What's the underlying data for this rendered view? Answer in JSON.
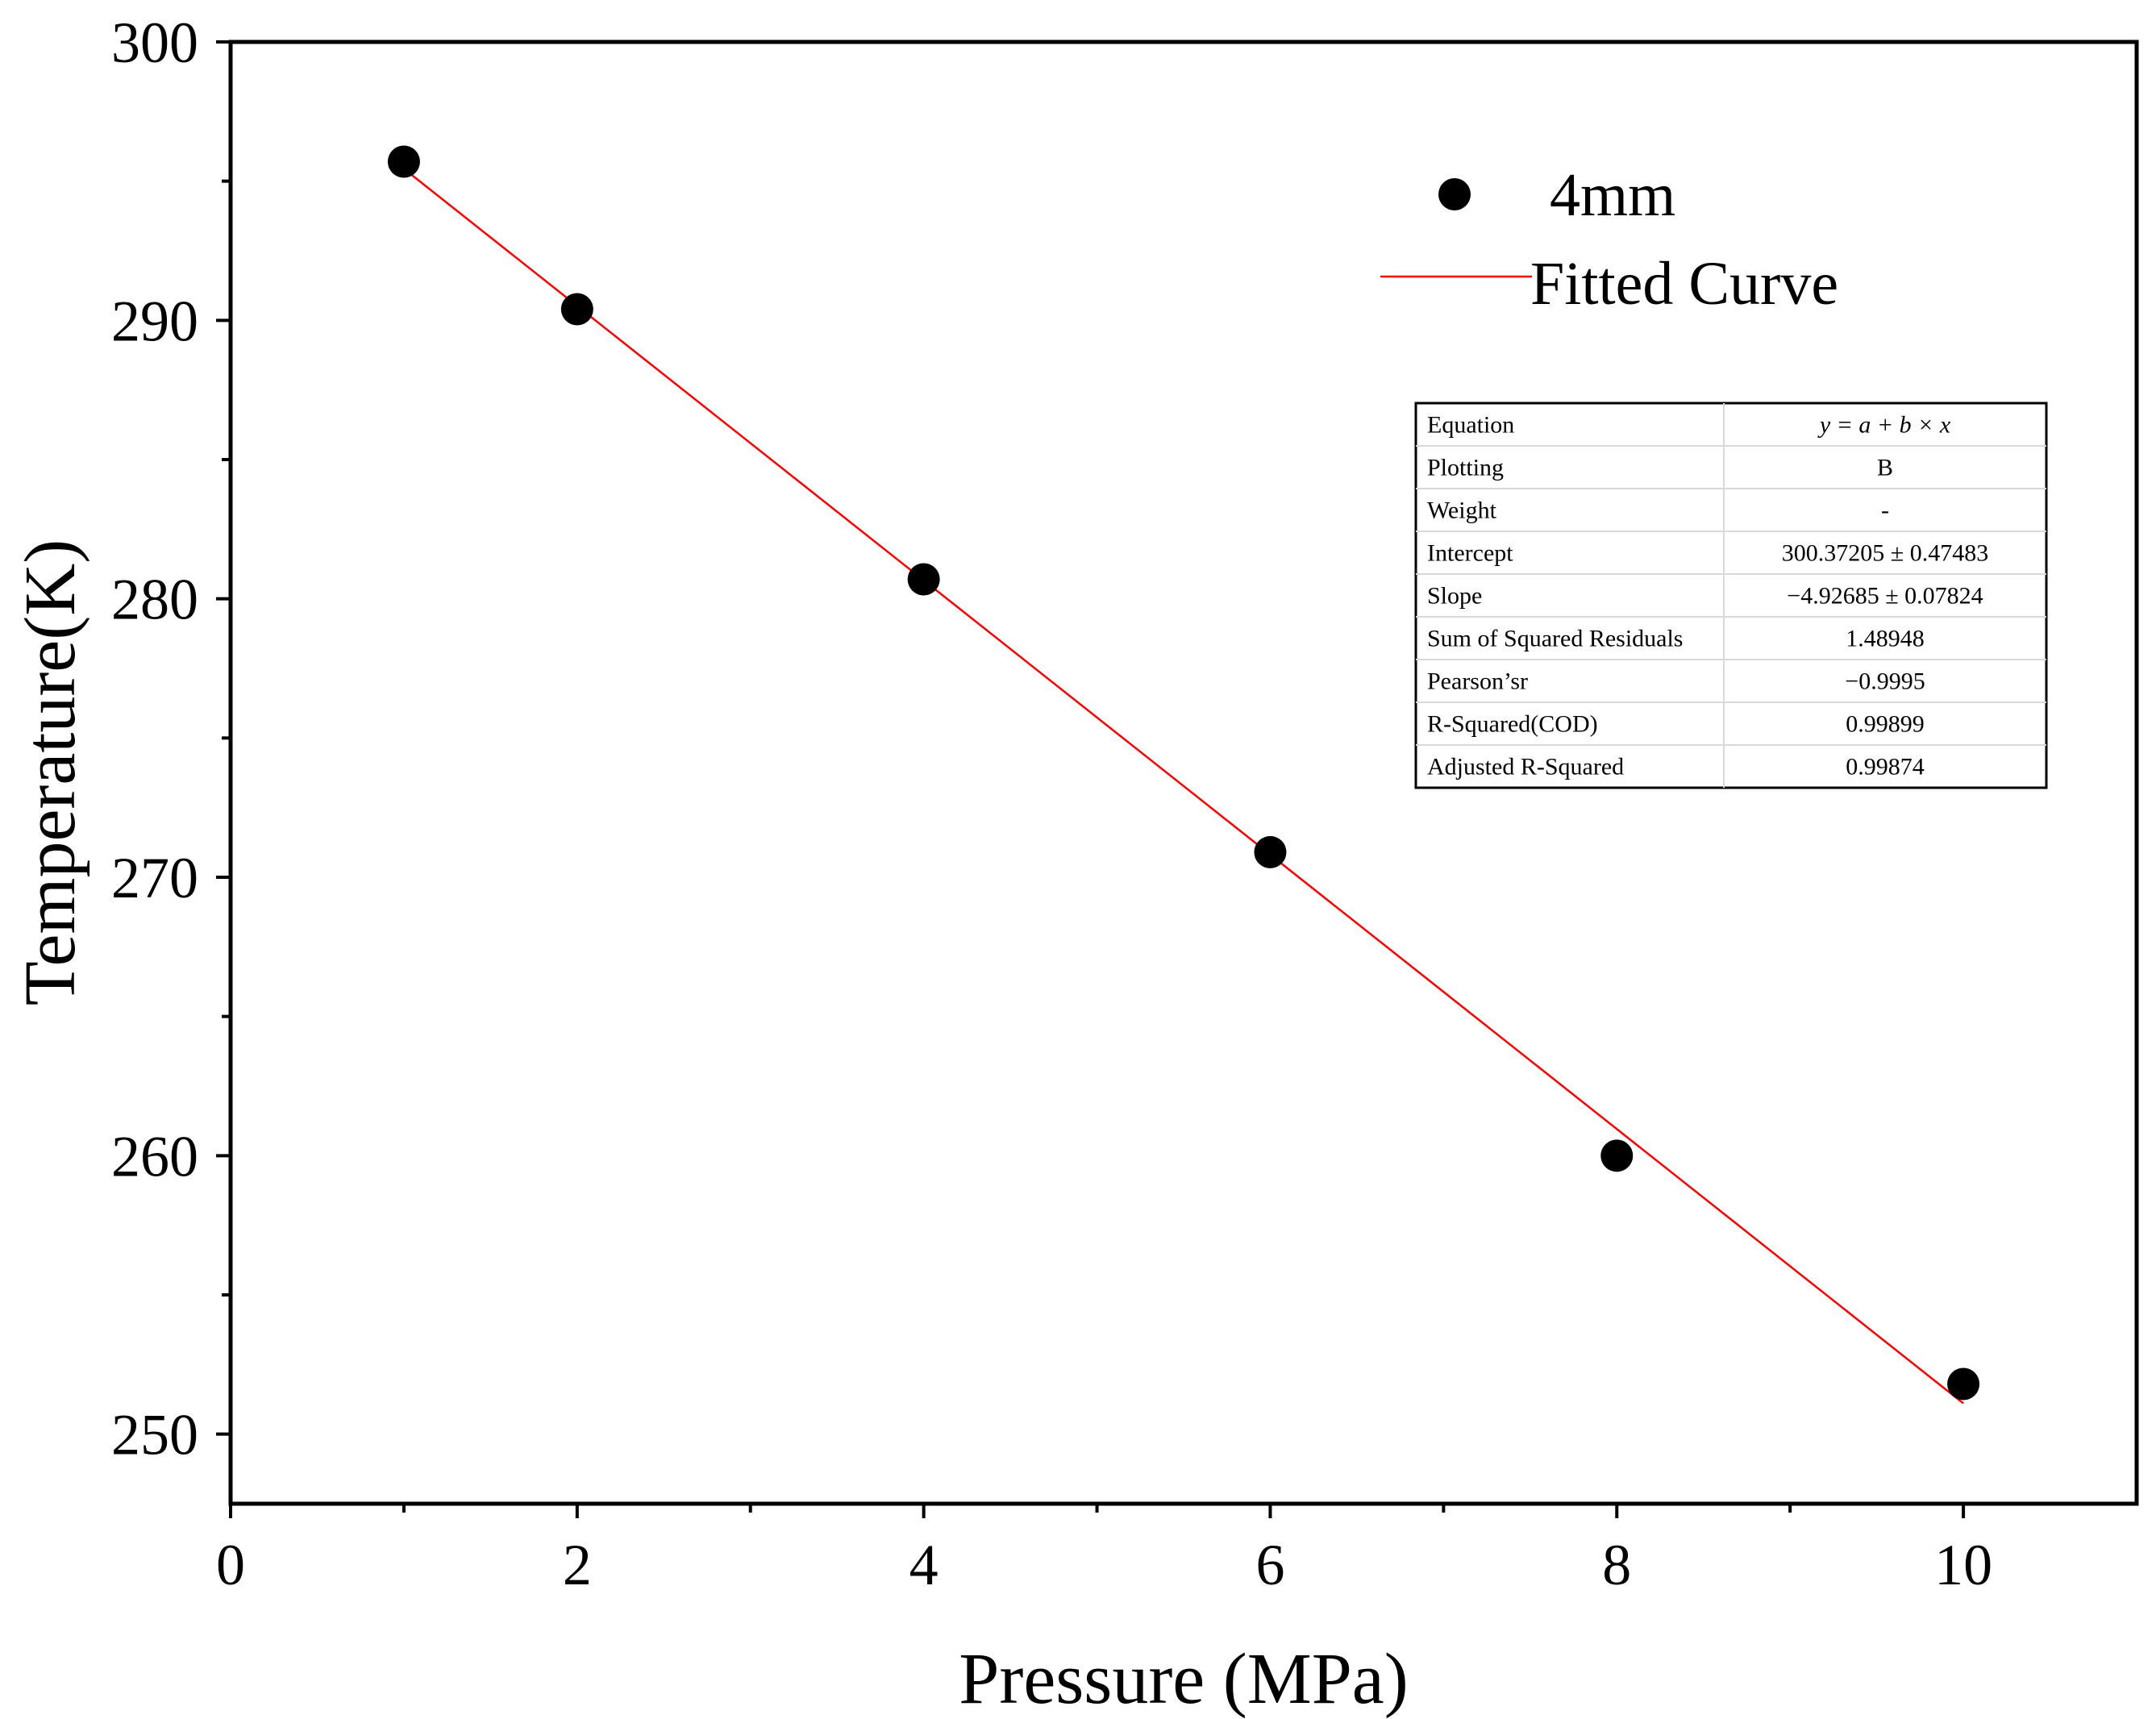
{
  "chart_data": {
    "type": "scatter",
    "title": "",
    "xlabel": "Pressure (MPa)",
    "ylabel": "Temperature(K)",
    "xlim": [
      0,
      11
    ],
    "ylim": [
      247.5,
      300
    ],
    "x_major_ticks": [
      0,
      2,
      4,
      6,
      8,
      10
    ],
    "x_minor_ticks": [
      1,
      3,
      5,
      7,
      9
    ],
    "y_major_ticks": [
      250,
      260,
      270,
      280,
      290,
      300
    ],
    "y_minor_ticks": [
      255,
      265,
      275,
      285,
      295
    ],
    "x_tick_labels": [
      "0",
      "2",
      "4",
      "6",
      "8",
      "10"
    ],
    "y_tick_labels": [
      "250",
      "260",
      "270",
      "280",
      "290",
      "300"
    ],
    "grid": false,
    "series": [
      {
        "name": "4mm",
        "kind": "scatter",
        "color": "#000000",
        "x": [
          1,
          2,
          4,
          6,
          8,
          10
        ],
        "y": [
          295.7,
          290.4,
          280.7,
          270.9,
          260.0,
          251.8
        ]
      },
      {
        "name": "Fitted Curve",
        "kind": "line",
        "color": "#ff0000",
        "intercept": 300.37205,
        "slope": -4.92685,
        "x_range": [
          1,
          10
        ]
      }
    ],
    "legend": {
      "position": "top-right",
      "entries": [
        "4mm",
        "Fitted Curve"
      ]
    },
    "stats_table": {
      "rows": [
        {
          "label": "Equation",
          "value": "y = a + b × x"
        },
        {
          "label": "Plotting",
          "value": "B"
        },
        {
          "label": "Weight",
          "value": "-"
        },
        {
          "label": "Intercept",
          "value": "300.37205 ± 0.47483"
        },
        {
          "label": "Slope",
          "value": "−4.92685 ± 0.07824"
        },
        {
          "label": "Sum of Squared Residuals",
          "value": "1.48948"
        },
        {
          "label": "Pearson’sr",
          "value": "−0.9995"
        },
        {
          "label": "R-Squared(COD)",
          "value": "0.99899"
        },
        {
          "label": "Adjusted R-Squared",
          "value": "0.99874"
        }
      ]
    }
  }
}
